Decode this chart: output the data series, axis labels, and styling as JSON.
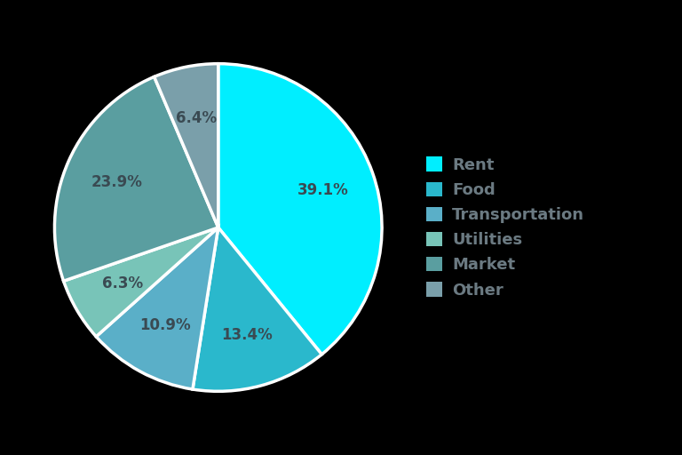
{
  "labels": [
    "Rent",
    "Food",
    "Transportation",
    "Utilities",
    "Market",
    "Other"
  ],
  "values": [
    39.1,
    13.4,
    10.9,
    6.3,
    23.9,
    6.4
  ],
  "colors": [
    "#00EEFF",
    "#2AB8CC",
    "#5AAFC8",
    "#78C4B8",
    "#5A9EA0",
    "#7A9FAA"
  ],
  "pct_labels": [
    "39.1%",
    "13.4%",
    "10.9%",
    "6.3%",
    "23.9%",
    "6.4%"
  ],
  "text_color": "#3a4a52",
  "legend_text_color": "#6b7a82",
  "background_color": "#000000",
  "wedge_linewidth": 2.5,
  "wedge_linecolor": "#ffffff",
  "label_fontsize": 12,
  "legend_fontsize": 13,
  "startangle": 90,
  "legend_marker_colors": [
    "#00EEFF",
    "#2AB8CC",
    "#5AAFC8",
    "#78C4B8",
    "#5A9EA0",
    "#7A9FAA"
  ]
}
